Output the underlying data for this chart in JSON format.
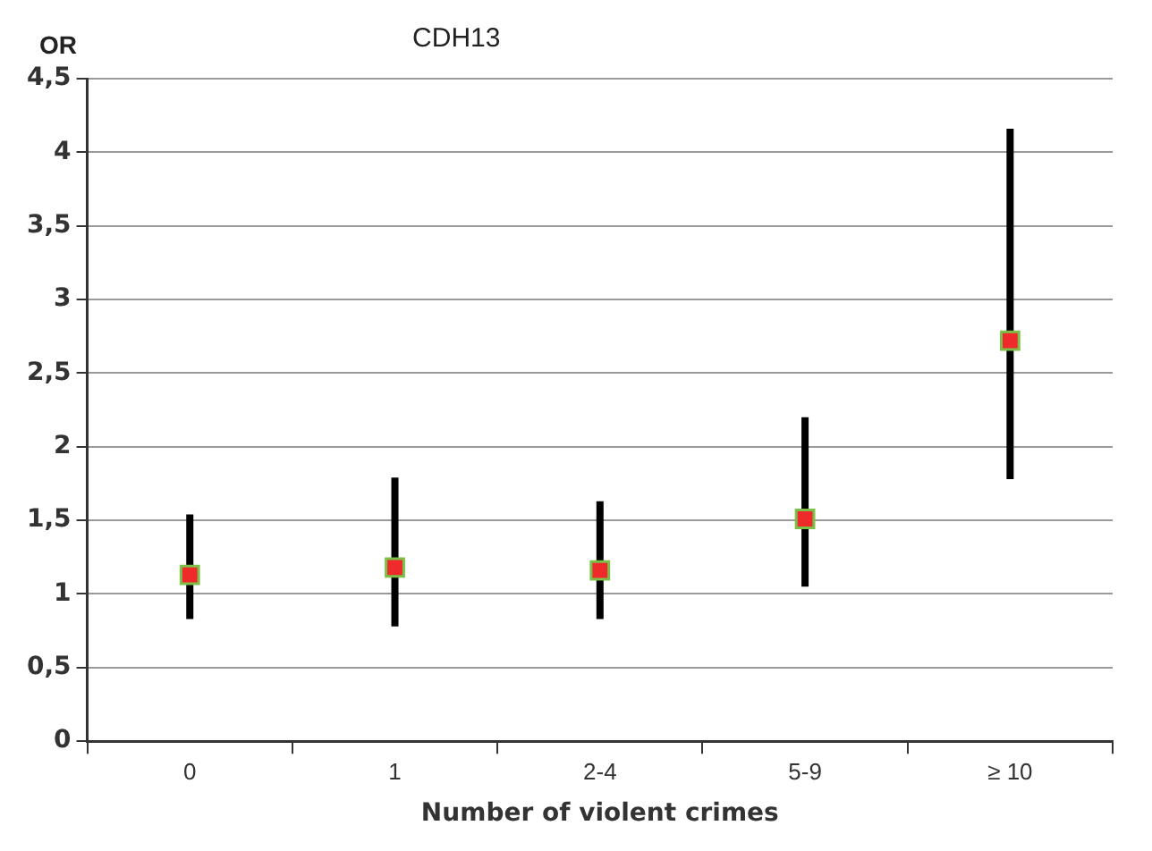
{
  "chart_data": {
    "type": "scatter",
    "title": "CDH13",
    "ylabel": "OR",
    "xlabel": "Number of violent crimes",
    "categories": [
      "0",
      "1",
      "2-4",
      "5-9",
      "≥ 10"
    ],
    "series": [
      {
        "color": "#ee2a2a",
        "values": [
          1.13,
          1.18,
          1.16,
          1.51,
          2.72
        ],
        "errors": [
          [
            0.83,
            1.54
          ],
          [
            0.78,
            1.79
          ],
          [
            0.83,
            1.63
          ],
          [
            1.05,
            2.2
          ],
          [
            1.78,
            4.16
          ]
        ]
      }
    ],
    "ylim": [
      0,
      4.5
    ],
    "yticks": [
      0,
      {
        "value": 0.5,
        "label": "0,5"
      },
      1,
      {
        "value": 1.5,
        "label": "1,5"
      },
      2,
      {
        "value": 2.5,
        "label": "2,5"
      },
      3,
      {
        "value": 3.5,
        "label": "3,5"
      },
      4,
      {
        "value": 4.5,
        "label": "4,5"
      }
    ],
    "grid": "y",
    "marker": "square",
    "legend": false
  }
}
